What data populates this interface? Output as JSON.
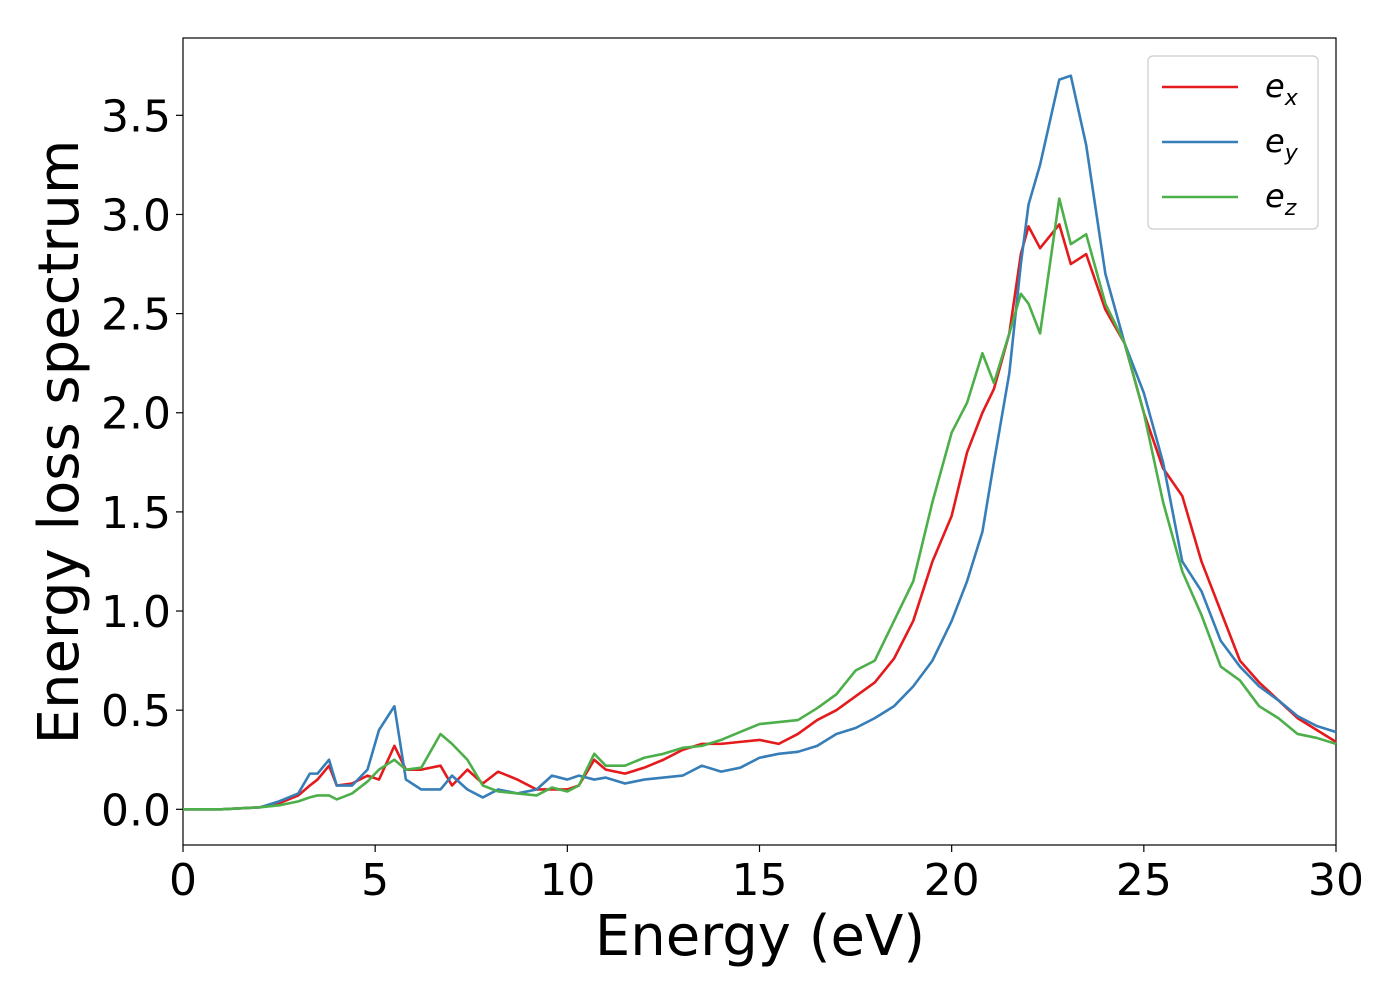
{
  "chart_data": {
    "type": "line",
    "x_label": "Energy (eV)",
    "y_label": "Energy loss spectrum",
    "x": [
      0,
      1,
      2,
      2.5,
      3,
      3.3,
      3.5,
      3.8,
      4,
      4.4,
      4.8,
      5.1,
      5.5,
      5.8,
      6.2,
      6.7,
      7,
      7.4,
      7.8,
      8.2,
      8.7,
      9.2,
      9.6,
      10,
      10.3,
      10.7,
      11,
      11.5,
      12,
      12.5,
      13,
      13.5,
      14,
      14.5,
      15,
      15.5,
      16,
      16.5,
      17,
      17.5,
      18,
      18.5,
      19,
      19.5,
      20,
      20.4,
      20.8,
      21.1,
      21.5,
      21.8,
      22,
      22.3,
      22.8,
      23.1,
      23.5,
      24,
      24.5,
      25,
      25.5,
      26,
      26.5,
      27,
      27.5,
      28,
      28.5,
      29,
      29.5,
      30
    ],
    "series": [
      {
        "name": "ex",
        "color": "#e41a1c",
        "values": [
          0,
          0,
          0.01,
          0.03,
          0.07,
          0.12,
          0.15,
          0.22,
          0.12,
          0.13,
          0.17,
          0.15,
          0.32,
          0.2,
          0.2,
          0.22,
          0.12,
          0.2,
          0.13,
          0.19,
          0.15,
          0.1,
          0.1,
          0.1,
          0.12,
          0.25,
          0.2,
          0.18,
          0.21,
          0.25,
          0.3,
          0.33,
          0.33,
          0.34,
          0.35,
          0.33,
          0.38,
          0.45,
          0.5,
          0.57,
          0.64,
          0.76,
          0.95,
          1.25,
          1.48,
          1.8,
          2.0,
          2.12,
          2.4,
          2.8,
          2.94,
          2.83,
          2.95,
          2.75,
          2.8,
          2.52,
          2.35,
          2.0,
          1.72,
          1.58,
          1.25,
          1.0,
          0.75,
          0.64,
          0.55,
          0.46,
          0.4,
          0.34
        ]
      },
      {
        "name": "ey",
        "color": "#377eb8",
        "values": [
          0,
          0,
          0.01,
          0.04,
          0.08,
          0.18,
          0.18,
          0.25,
          0.12,
          0.12,
          0.2,
          0.4,
          0.52,
          0.15,
          0.1,
          0.1,
          0.17,
          0.1,
          0.06,
          0.1,
          0.08,
          0.1,
          0.17,
          0.15,
          0.17,
          0.15,
          0.16,
          0.13,
          0.15,
          0.16,
          0.17,
          0.22,
          0.19,
          0.21,
          0.26,
          0.28,
          0.29,
          0.32,
          0.38,
          0.41,
          0.46,
          0.52,
          0.62,
          0.75,
          0.95,
          1.15,
          1.4,
          1.75,
          2.2,
          2.75,
          3.05,
          3.25,
          3.68,
          3.7,
          3.35,
          2.7,
          2.35,
          2.1,
          1.75,
          1.25,
          1.1,
          0.85,
          0.72,
          0.62,
          0.55,
          0.47,
          0.42,
          0.39
        ]
      },
      {
        "name": "ez",
        "color": "#4daf4a",
        "values": [
          0,
          0,
          0.01,
          0.02,
          0.04,
          0.06,
          0.07,
          0.07,
          0.05,
          0.08,
          0.14,
          0.2,
          0.25,
          0.2,
          0.21,
          0.38,
          0.33,
          0.25,
          0.12,
          0.09,
          0.08,
          0.07,
          0.11,
          0.09,
          0.12,
          0.28,
          0.22,
          0.22,
          0.26,
          0.28,
          0.31,
          0.32,
          0.35,
          0.39,
          0.43,
          0.44,
          0.45,
          0.51,
          0.58,
          0.7,
          0.75,
          0.95,
          1.15,
          1.55,
          1.9,
          2.05,
          2.3,
          2.15,
          2.4,
          2.6,
          2.55,
          2.4,
          3.08,
          2.85,
          2.9,
          2.55,
          2.35,
          2.0,
          1.55,
          1.2,
          0.98,
          0.72,
          0.65,
          0.52,
          0.46,
          0.38,
          0.36,
          0.33
        ]
      }
    ],
    "xlim": [
      0,
      30
    ],
    "xticks": [
      0,
      5,
      10,
      15,
      20,
      25,
      30
    ],
    "ylim": [
      -0.18,
      3.89
    ],
    "yticks": [
      {
        "value": 0,
        "label": "0.0"
      },
      0.5,
      {
        "value": 1,
        "label": "1.0"
      },
      1.5,
      {
        "value": 2,
        "label": "2.0"
      },
      2.5,
      {
        "value": 3,
        "label": "3.0"
      },
      3.5
    ],
    "legend": "upper right",
    "grid": false
  }
}
